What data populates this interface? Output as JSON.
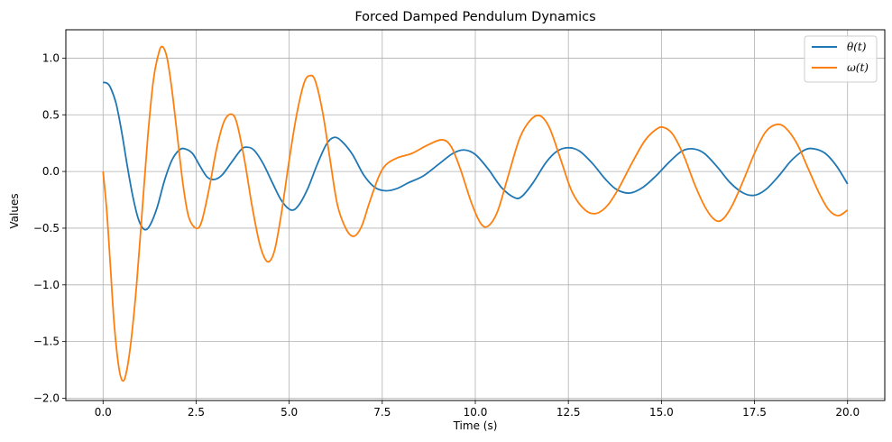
{
  "chart_data": {
    "type": "line",
    "title": "Forced Damped Pendulum Dynamics",
    "xlabel": "Time (s)",
    "ylabel": "Values",
    "xlim": [
      -1.0,
      21.0
    ],
    "ylim": [
      -2.02,
      1.25
    ],
    "grid": true,
    "legend_position": "top-right",
    "x_ticks": [
      0.0,
      2.5,
      5.0,
      7.5,
      10.0,
      12.5,
      15.0,
      17.5,
      20.0
    ],
    "x_tick_labels": [
      "0.0",
      "2.5",
      "5.0",
      "7.5",
      "10.0",
      "12.5",
      "15.0",
      "17.5",
      "20.0"
    ],
    "y_ticks": [
      -2.0,
      -1.5,
      -1.0,
      -0.5,
      0.0,
      0.5,
      1.0
    ],
    "y_tick_labels": [
      "−2.0",
      "−1.5",
      "−1.0",
      "−0.5",
      "0.0",
      "0.5",
      "1.0"
    ],
    "series": [
      {
        "name": "θ(t)",
        "color": "#1f77b4",
        "points": [
          [
            0.0,
            0.785
          ],
          [
            0.1,
            0.78
          ],
          [
            0.2,
            0.74
          ],
          [
            0.35,
            0.6
          ],
          [
            0.5,
            0.35
          ],
          [
            0.65,
            0.05
          ],
          [
            0.8,
            -0.22
          ],
          [
            0.95,
            -0.42
          ],
          [
            1.1,
            -0.51
          ],
          [
            1.25,
            -0.48
          ],
          [
            1.45,
            -0.32
          ],
          [
            1.65,
            -0.08
          ],
          [
            1.85,
            0.1
          ],
          [
            2.05,
            0.19
          ],
          [
            2.2,
            0.2
          ],
          [
            2.4,
            0.16
          ],
          [
            2.6,
            0.05
          ],
          [
            2.8,
            -0.05
          ],
          [
            3.0,
            -0.07
          ],
          [
            3.2,
            -0.03
          ],
          [
            3.45,
            0.08
          ],
          [
            3.7,
            0.19
          ],
          [
            3.85,
            0.215
          ],
          [
            4.05,
            0.19
          ],
          [
            4.3,
            0.07
          ],
          [
            4.55,
            -0.1
          ],
          [
            4.8,
            -0.26
          ],
          [
            5.05,
            -0.34
          ],
          [
            5.25,
            -0.3
          ],
          [
            5.5,
            -0.15
          ],
          [
            5.75,
            0.06
          ],
          [
            6.0,
            0.24
          ],
          [
            6.2,
            0.3
          ],
          [
            6.4,
            0.27
          ],
          [
            6.7,
            0.15
          ],
          [
            7.0,
            -0.03
          ],
          [
            7.3,
            -0.14
          ],
          [
            7.6,
            -0.17
          ],
          [
            7.9,
            -0.15
          ],
          [
            8.2,
            -0.1
          ],
          [
            8.6,
            -0.04
          ],
          [
            9.0,
            0.06
          ],
          [
            9.4,
            0.16
          ],
          [
            9.7,
            0.19
          ],
          [
            10.0,
            0.15
          ],
          [
            10.35,
            0.02
          ],
          [
            10.7,
            -0.14
          ],
          [
            11.05,
            -0.23
          ],
          [
            11.25,
            -0.22
          ],
          [
            11.55,
            -0.1
          ],
          [
            11.9,
            0.08
          ],
          [
            12.2,
            0.18
          ],
          [
            12.5,
            0.21
          ],
          [
            12.8,
            0.18
          ],
          [
            13.15,
            0.07
          ],
          [
            13.5,
            -0.07
          ],
          [
            13.8,
            -0.16
          ],
          [
            14.15,
            -0.19
          ],
          [
            14.5,
            -0.14
          ],
          [
            14.85,
            -0.04
          ],
          [
            15.2,
            0.08
          ],
          [
            15.55,
            0.18
          ],
          [
            15.85,
            0.2
          ],
          [
            16.15,
            0.16
          ],
          [
            16.5,
            0.04
          ],
          [
            16.85,
            -0.1
          ],
          [
            17.2,
            -0.19
          ],
          [
            17.5,
            -0.21
          ],
          [
            17.8,
            -0.16
          ],
          [
            18.15,
            -0.04
          ],
          [
            18.5,
            0.1
          ],
          [
            18.85,
            0.19
          ],
          [
            19.1,
            0.2
          ],
          [
            19.4,
            0.16
          ],
          [
            19.7,
            0.05
          ],
          [
            20.0,
            -0.11
          ]
        ]
      },
      {
        "name": "ω(t)",
        "color": "#ff7f0e",
        "points": [
          [
            0.0,
            0.0
          ],
          [
            0.1,
            -0.35
          ],
          [
            0.2,
            -0.85
          ],
          [
            0.3,
            -1.35
          ],
          [
            0.42,
            -1.72
          ],
          [
            0.52,
            -1.845
          ],
          [
            0.62,
            -1.78
          ],
          [
            0.75,
            -1.5
          ],
          [
            0.9,
            -1.0
          ],
          [
            1.05,
            -0.35
          ],
          [
            1.2,
            0.3
          ],
          [
            1.35,
            0.8
          ],
          [
            1.5,
            1.05
          ],
          [
            1.6,
            1.1
          ],
          [
            1.72,
            1.0
          ],
          [
            1.85,
            0.72
          ],
          [
            2.0,
            0.3
          ],
          [
            2.15,
            -0.12
          ],
          [
            2.3,
            -0.4
          ],
          [
            2.5,
            -0.5
          ],
          [
            2.65,
            -0.44
          ],
          [
            2.85,
            -0.15
          ],
          [
            3.05,
            0.2
          ],
          [
            3.25,
            0.44
          ],
          [
            3.45,
            0.505
          ],
          [
            3.6,
            0.42
          ],
          [
            3.8,
            0.1
          ],
          [
            4.0,
            -0.3
          ],
          [
            4.2,
            -0.63
          ],
          [
            4.35,
            -0.77
          ],
          [
            4.48,
            -0.79
          ],
          [
            4.62,
            -0.68
          ],
          [
            4.8,
            -0.35
          ],
          [
            5.0,
            0.1
          ],
          [
            5.2,
            0.5
          ],
          [
            5.4,
            0.78
          ],
          [
            5.55,
            0.845
          ],
          [
            5.7,
            0.8
          ],
          [
            5.9,
            0.52
          ],
          [
            6.1,
            0.1
          ],
          [
            6.3,
            -0.3
          ],
          [
            6.55,
            -0.52
          ],
          [
            6.75,
            -0.57
          ],
          [
            6.95,
            -0.48
          ],
          [
            7.15,
            -0.28
          ],
          [
            7.4,
            -0.05
          ],
          [
            7.6,
            0.06
          ],
          [
            7.9,
            0.12
          ],
          [
            8.3,
            0.16
          ],
          [
            8.7,
            0.23
          ],
          [
            9.1,
            0.28
          ],
          [
            9.35,
            0.22
          ],
          [
            9.6,
            0.02
          ],
          [
            9.9,
            -0.28
          ],
          [
            10.15,
            -0.46
          ],
          [
            10.35,
            -0.48
          ],
          [
            10.6,
            -0.35
          ],
          [
            10.9,
            -0.02
          ],
          [
            11.2,
            0.3
          ],
          [
            11.5,
            0.46
          ],
          [
            11.75,
            0.49
          ],
          [
            12.0,
            0.38
          ],
          [
            12.3,
            0.1
          ],
          [
            12.6,
            -0.18
          ],
          [
            12.95,
            -0.34
          ],
          [
            13.25,
            -0.37
          ],
          [
            13.55,
            -0.3
          ],
          [
            13.85,
            -0.15
          ],
          [
            14.2,
            0.07
          ],
          [
            14.55,
            0.27
          ],
          [
            14.85,
            0.37
          ],
          [
            15.05,
            0.39
          ],
          [
            15.3,
            0.33
          ],
          [
            15.6,
            0.14
          ],
          [
            15.9,
            -0.12
          ],
          [
            16.2,
            -0.33
          ],
          [
            16.45,
            -0.43
          ],
          [
            16.65,
            -0.42
          ],
          [
            16.9,
            -0.3
          ],
          [
            17.2,
            -0.08
          ],
          [
            17.5,
            0.16
          ],
          [
            17.8,
            0.35
          ],
          [
            18.1,
            0.415
          ],
          [
            18.35,
            0.38
          ],
          [
            18.65,
            0.24
          ],
          [
            18.95,
            0.02
          ],
          [
            19.25,
            -0.2
          ],
          [
            19.5,
            -0.34
          ],
          [
            19.75,
            -0.39
          ],
          [
            20.0,
            -0.34
          ]
        ]
      }
    ]
  }
}
